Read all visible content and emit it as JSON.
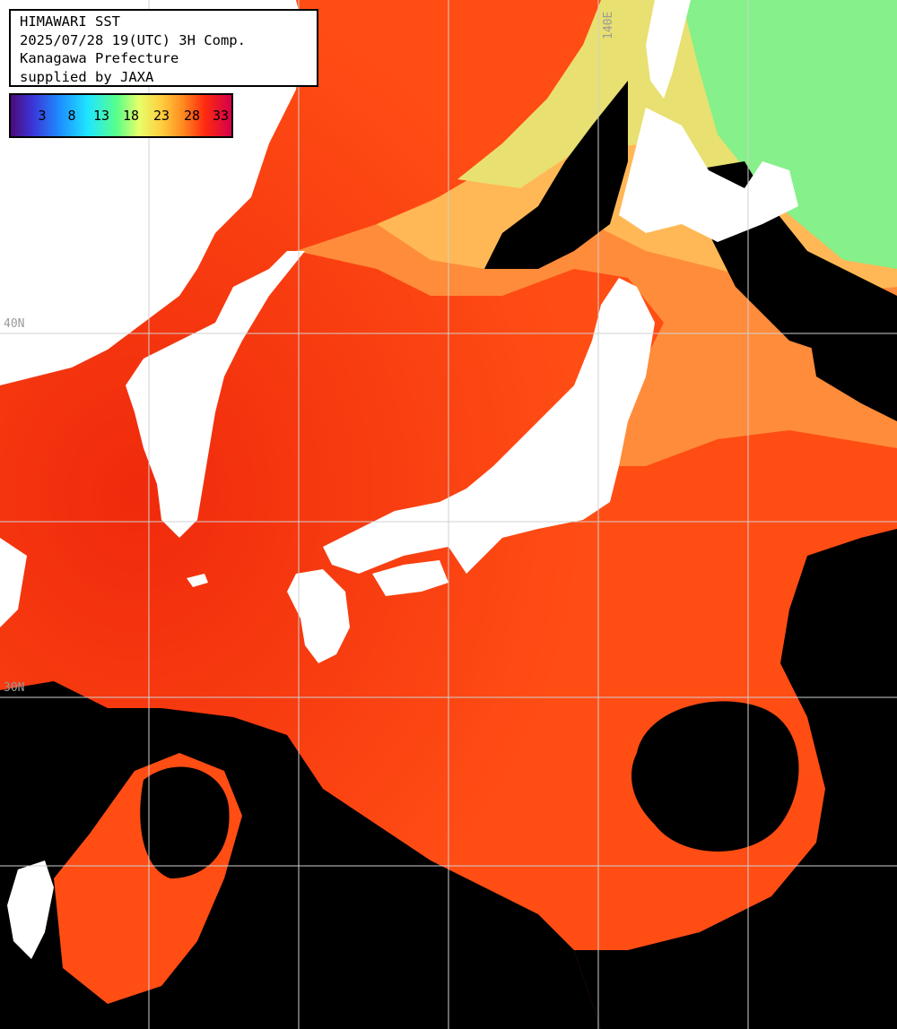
{
  "header": {
    "title": "HIMAWARI SST",
    "datetime": "2025/07/28 19(UTC) 3H Comp.",
    "region": "Kanagawa Prefecture",
    "credit": "supplied by JAXA"
  },
  "colorbar": {
    "ticks": [
      "3",
      "8",
      "13",
      "18",
      "23",
      "28",
      "33"
    ]
  },
  "grid": {
    "lat_label": "40N",
    "lat_label_2": "30N",
    "lon_label": "140E"
  },
  "colors": {
    "land": "#ffffff",
    "no_data": "#000000",
    "sst_warm": "#ff4a14",
    "sst_mid": "#ff8c3a",
    "sst_cool": "#e8e070",
    "sst_cold": "#86f08a",
    "grid_line": "#d0d0d0"
  }
}
